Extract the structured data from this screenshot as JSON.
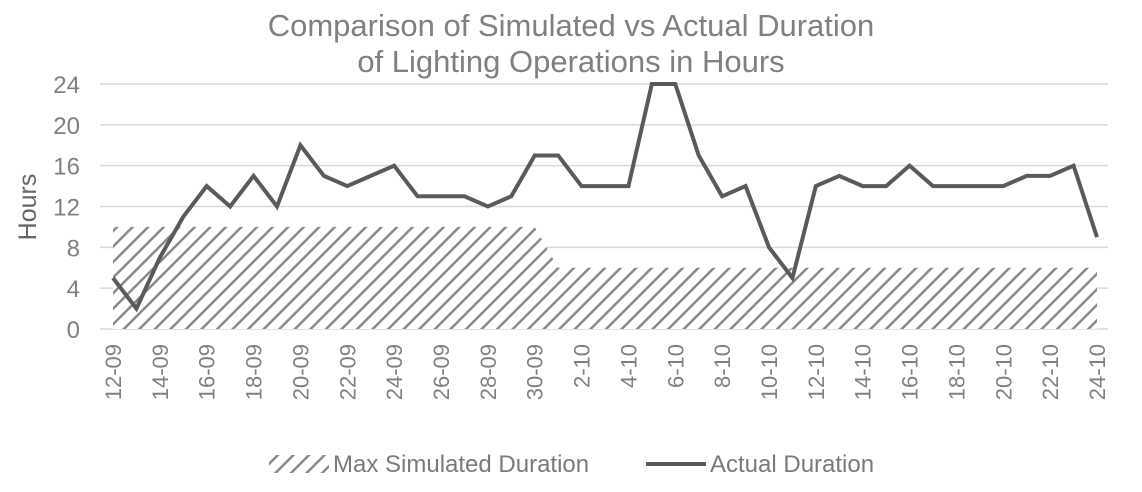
{
  "chart_data": {
    "type": "area+line",
    "title": [
      "Comparison of Simulated vs Actual Duration",
      "of Lighting Operations in Hours"
    ],
    "ylabel": "Hours",
    "xlabel": "",
    "ylim": [
      0,
      24
    ],
    "yticks": [
      0,
      4,
      8,
      12,
      16,
      20,
      24
    ],
    "grid": true,
    "legend_position": "bottom",
    "x": [
      "12-09",
      "13-09",
      "14-09",
      "15-09",
      "16-09",
      "17-09",
      "18-09",
      "19-09",
      "20-09",
      "21-09",
      "22-09",
      "23-09",
      "24-09",
      "25-09",
      "26-09",
      "27-09",
      "28-09",
      "29-09",
      "30-09",
      "1-10",
      "2-10",
      "3-10",
      "4-10",
      "5-10",
      "6-10",
      "7-10",
      "8-10",
      "9-10",
      "10-10",
      "11-10",
      "12-10",
      "13-10",
      "14-10",
      "15-10",
      "16-10",
      "17-10",
      "18-10",
      "19-10",
      "20-10",
      "21-10",
      "22-10",
      "23-10",
      "24-10"
    ],
    "tick_labels": [
      "12-09",
      "14-09",
      "16-09",
      "18-09",
      "20-09",
      "22-09",
      "24-09",
      "26-09",
      "28-09",
      "30-09",
      "2-10",
      "4-10",
      "6-10",
      "8-10",
      "10-10",
      "12-10",
      "14-10",
      "16-10",
      "18-10",
      "20-10",
      "22-10",
      "24-10"
    ],
    "series": [
      {
        "name": "Max Simulated Duration",
        "kind": "area",
        "pattern": "diagonal-hatch",
        "color": "#8a8a8a",
        "values": [
          10,
          10,
          10,
          10,
          10,
          10,
          10,
          10,
          10,
          10,
          10,
          10,
          10,
          10,
          10,
          10,
          10,
          10,
          10,
          6,
          6,
          6,
          6,
          6,
          6,
          6,
          6,
          6,
          6,
          6,
          6,
          6,
          6,
          6,
          6,
          6,
          6,
          6,
          6,
          6,
          6,
          6,
          6
        ]
      },
      {
        "name": "Actual Duration",
        "kind": "line",
        "color": "#5a5a5a",
        "values": [
          5,
          2,
          7,
          11,
          14,
          12,
          15,
          12,
          18,
          15,
          14,
          15,
          16,
          13,
          13,
          13,
          12,
          13,
          17,
          17,
          14,
          14,
          14,
          24,
          24,
          17,
          13,
          14,
          8,
          5,
          14,
          15,
          14,
          14,
          16,
          14,
          14,
          14,
          14,
          15,
          15,
          16,
          9
        ]
      }
    ]
  }
}
